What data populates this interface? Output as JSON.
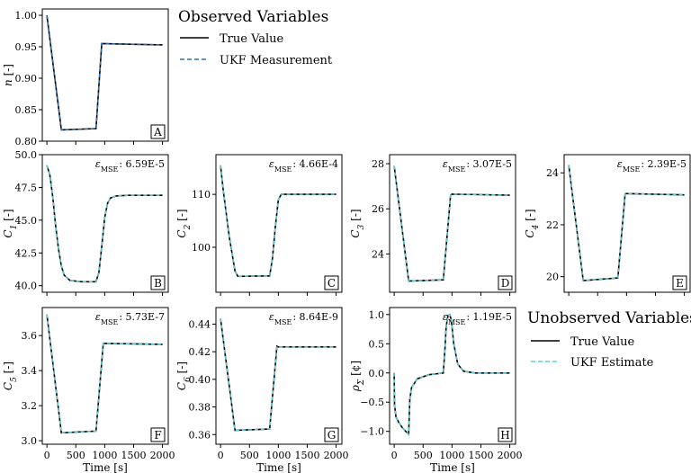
{
  "observed_legend": {
    "title": "Observed Variables",
    "true_label": "True Value",
    "meas_label": "UKF Measurement"
  },
  "unobserved_legend": {
    "title": "Unobserved Variables",
    "true_label": "True Value",
    "est_label": "UKF Estimate"
  },
  "colors": {
    "true": "#000000",
    "measurement": "#2f6fb3",
    "estimate": "#5fd0d8"
  },
  "chart_data": [
    {
      "id": "A",
      "type": "line",
      "letter": "A",
      "ylabel": "n [-]",
      "xlabel": "",
      "xlim": [
        -80,
        2100
      ],
      "ylim": [
        0.8,
        1.01
      ],
      "yticks": [
        0.8,
        0.85,
        0.9,
        0.95,
        1.0
      ],
      "ytick_labels": [
        "0.80",
        "0.85",
        "0.90",
        "0.95",
        "1.00"
      ],
      "xticks": [
        0,
        500,
        1000,
        1500,
        2000
      ],
      "xtick_labels": [],
      "mse": "",
      "estimate_style": "measurement",
      "x": [
        0,
        250,
        850,
        950,
        2000
      ],
      "y": [
        1.0,
        0.818,
        0.82,
        0.955,
        0.953
      ]
    },
    {
      "id": "B",
      "type": "line",
      "letter": "B",
      "ylabel": "C1 [-]",
      "xlabel": "",
      "xlim": [
        -80,
        2100
      ],
      "ylim": [
        39.5,
        50.0
      ],
      "yticks": [
        40.0,
        42.5,
        45.0,
        47.5,
        50.0
      ],
      "ytick_labels": [
        "40.0",
        "42.5",
        "45.0",
        "47.5",
        "50.0"
      ],
      "xticks": [
        0,
        500,
        1000,
        1500,
        2000
      ],
      "xtick_labels": [],
      "mse": "6.59E-5",
      "estimate_style": "estimate",
      "x": [
        0,
        50,
        100,
        150,
        200,
        250,
        300,
        400,
        600,
        850,
        900,
        950,
        1000,
        1050,
        1100,
        1200,
        1400,
        1700,
        2000
      ],
      "y": [
        49.2,
        48.5,
        46.8,
        44.6,
        42.8,
        41.5,
        40.8,
        40.4,
        40.3,
        40.3,
        41.0,
        43.0,
        45.2,
        46.3,
        46.7,
        46.85,
        46.9,
        46.9,
        46.9
      ]
    },
    {
      "id": "C",
      "type": "line",
      "letter": "C",
      "ylabel": "C2 [-]",
      "xlabel": "",
      "xlim": [
        -80,
        2100
      ],
      "ylim": [
        91.5,
        117.5
      ],
      "yticks": [
        100,
        110
      ],
      "ytick_labels": [
        "100",
        "110"
      ],
      "xticks": [
        0,
        500,
        1000,
        1500,
        2000
      ],
      "xtick_labels": [],
      "mse": "4.66E-4",
      "estimate_style": "estimate",
      "x": [
        0,
        50,
        150,
        250,
        300,
        850,
        900,
        950,
        1000,
        1050,
        1200,
        2000
      ],
      "y": [
        115.5,
        110.5,
        102.0,
        95.5,
        94.5,
        94.6,
        98.0,
        104.0,
        109.0,
        110.0,
        110.0,
        110.0
      ]
    },
    {
      "id": "D",
      "type": "line",
      "letter": "D",
      "ylabel": "C3 [-]",
      "xlabel": "",
      "xlim": [
        -80,
        2100
      ],
      "ylim": [
        22.3,
        28.4
      ],
      "yticks": [
        24,
        26,
        28
      ],
      "ytick_labels": [
        "24",
        "26",
        "28"
      ],
      "xticks": [
        0,
        500,
        1000,
        1500,
        2000
      ],
      "xtick_labels": [],
      "mse": "3.07E-5",
      "estimate_style": "estimate",
      "x": [
        0,
        250,
        850,
        975,
        1000,
        2000
      ],
      "y": [
        27.9,
        22.8,
        22.85,
        26.6,
        26.65,
        26.6
      ]
    },
    {
      "id": "E",
      "type": "line",
      "letter": "E",
      "ylabel": "C4 [-]",
      "xlabel": "",
      "xlim": [
        -80,
        2100
      ],
      "ylim": [
        19.4,
        24.7
      ],
      "yticks": [
        20,
        22,
        24
      ],
      "ytick_labels": [
        "20",
        "22",
        "24"
      ],
      "xticks": [
        0,
        500,
        1000,
        1500,
        2000
      ],
      "xtick_labels": [],
      "mse": "2.39E-5",
      "estimate_style": "estimate",
      "x": [
        0,
        250,
        850,
        975,
        1000,
        2000
      ],
      "y": [
        24.3,
        19.85,
        19.95,
        23.2,
        23.2,
        23.15
      ]
    },
    {
      "id": "F",
      "type": "line",
      "letter": "F",
      "ylabel": "C5 [-]",
      "xlabel": "Time [s]",
      "xlim": [
        -80,
        2100
      ],
      "ylim": [
        2.98,
        3.76
      ],
      "yticks": [
        3.0,
        3.2,
        3.4,
        3.6
      ],
      "ytick_labels": [
        "3.0",
        "3.2",
        "3.4",
        "3.6"
      ],
      "xticks": [
        0,
        500,
        1000,
        1500,
        2000
      ],
      "xtick_labels": [
        "0",
        "500",
        "1000",
        "1500",
        "2000"
      ],
      "mse": "5.73E-7",
      "estimate_style": "estimate",
      "x": [
        0,
        250,
        850,
        975,
        1000,
        2000
      ],
      "y": [
        3.72,
        3.045,
        3.055,
        3.555,
        3.555,
        3.55
      ]
    },
    {
      "id": "G",
      "type": "line",
      "letter": "G",
      "ylabel": "C6 [-]",
      "xlabel": "Time [s]",
      "xlim": [
        -80,
        2100
      ],
      "ylim": [
        0.353,
        0.452
      ],
      "yticks": [
        0.36,
        0.38,
        0.4,
        0.42,
        0.44
      ],
      "ytick_labels": [
        "0.36",
        "0.38",
        "0.40",
        "0.42",
        "0.44"
      ],
      "xticks": [
        0,
        500,
        1000,
        1500,
        2000
      ],
      "xtick_labels": [
        "0",
        "500",
        "1000",
        "1500",
        "2000"
      ],
      "mse": "8.64E-9",
      "estimate_style": "estimate",
      "x": [
        0,
        250,
        850,
        975,
        1000,
        2000
      ],
      "y": [
        0.444,
        0.363,
        0.364,
        0.424,
        0.4235,
        0.4235
      ]
    },
    {
      "id": "H",
      "type": "line",
      "letter": "H",
      "ylabel": "ρΣ [¢]",
      "xlabel": "Time [s]",
      "xlim": [
        -80,
        2100
      ],
      "ylim": [
        -1.22,
        1.12
      ],
      "yticks": [
        -1.0,
        -0.5,
        0.0,
        0.5,
        1.0
      ],
      "ytick_labels": [
        "−1.0",
        "−0.5",
        "0.0",
        "0.5",
        "1.0"
      ],
      "xticks": [
        0,
        500,
        1000,
        1500,
        2000
      ],
      "xtick_labels": [
        "0",
        "500",
        "1000",
        "1500",
        "2000"
      ],
      "mse": "1.19E-5",
      "estimate_style": "estimate",
      "x": [
        0,
        5,
        30,
        80,
        150,
        220,
        250,
        270,
        300,
        400,
        600,
        850,
        880,
        900,
        930,
        960,
        990,
        1030,
        1100,
        1200,
        1400,
        2000
      ],
      "y": [
        0.0,
        -0.55,
        -0.75,
        -0.85,
        -0.95,
        -1.02,
        -1.05,
        -0.45,
        -0.25,
        -0.1,
        -0.03,
        0.0,
        0.45,
        0.8,
        0.98,
        1.0,
        0.9,
        0.5,
        0.15,
        0.03,
        0.0,
        0.0
      ]
    }
  ]
}
